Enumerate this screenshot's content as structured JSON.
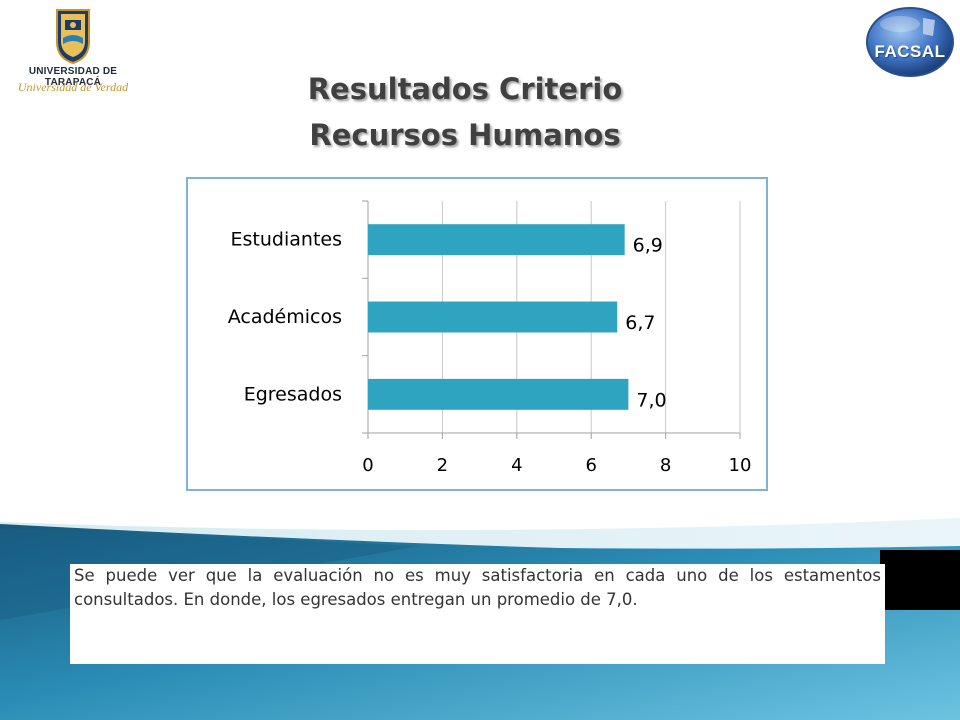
{
  "header": {
    "logo_left_name": "UNIVERSIDAD DE TARAPACÁ",
    "logo_left_slogan": "Universidad de Verdad",
    "logo_right_text": "FACSAL",
    "title_line1": "Resultados Criterio",
    "title_line2": "Recursos Humanos"
  },
  "chart_data": {
    "type": "bar",
    "orientation": "horizontal",
    "categories": [
      "Estudiantes",
      "Académicos",
      "Egresados"
    ],
    "values": [
      6.9,
      6.7,
      7.0
    ],
    "data_labels": [
      "6,9",
      "6,7",
      "7,0"
    ],
    "xticks": [
      "0",
      "2",
      "4",
      "6",
      "8",
      "10"
    ],
    "xlim": [
      0,
      10
    ],
    "grid": true,
    "legend": "none",
    "bar_color": "#2fa4c0",
    "title": "",
    "xlabel": "",
    "ylabel": ""
  },
  "body": {
    "paragraph": "Se puede ver que la evaluación no es muy satisfactoria en cada uno de los estamentos consultados.  En donde, los egresados entregan un promedio de 7,0."
  },
  "colors": {
    "accent": "#2fa4c0",
    "chart_border": "#7cb3d8",
    "wave_dark": "#1c6e94",
    "wave_light": "#5fb8d8"
  }
}
